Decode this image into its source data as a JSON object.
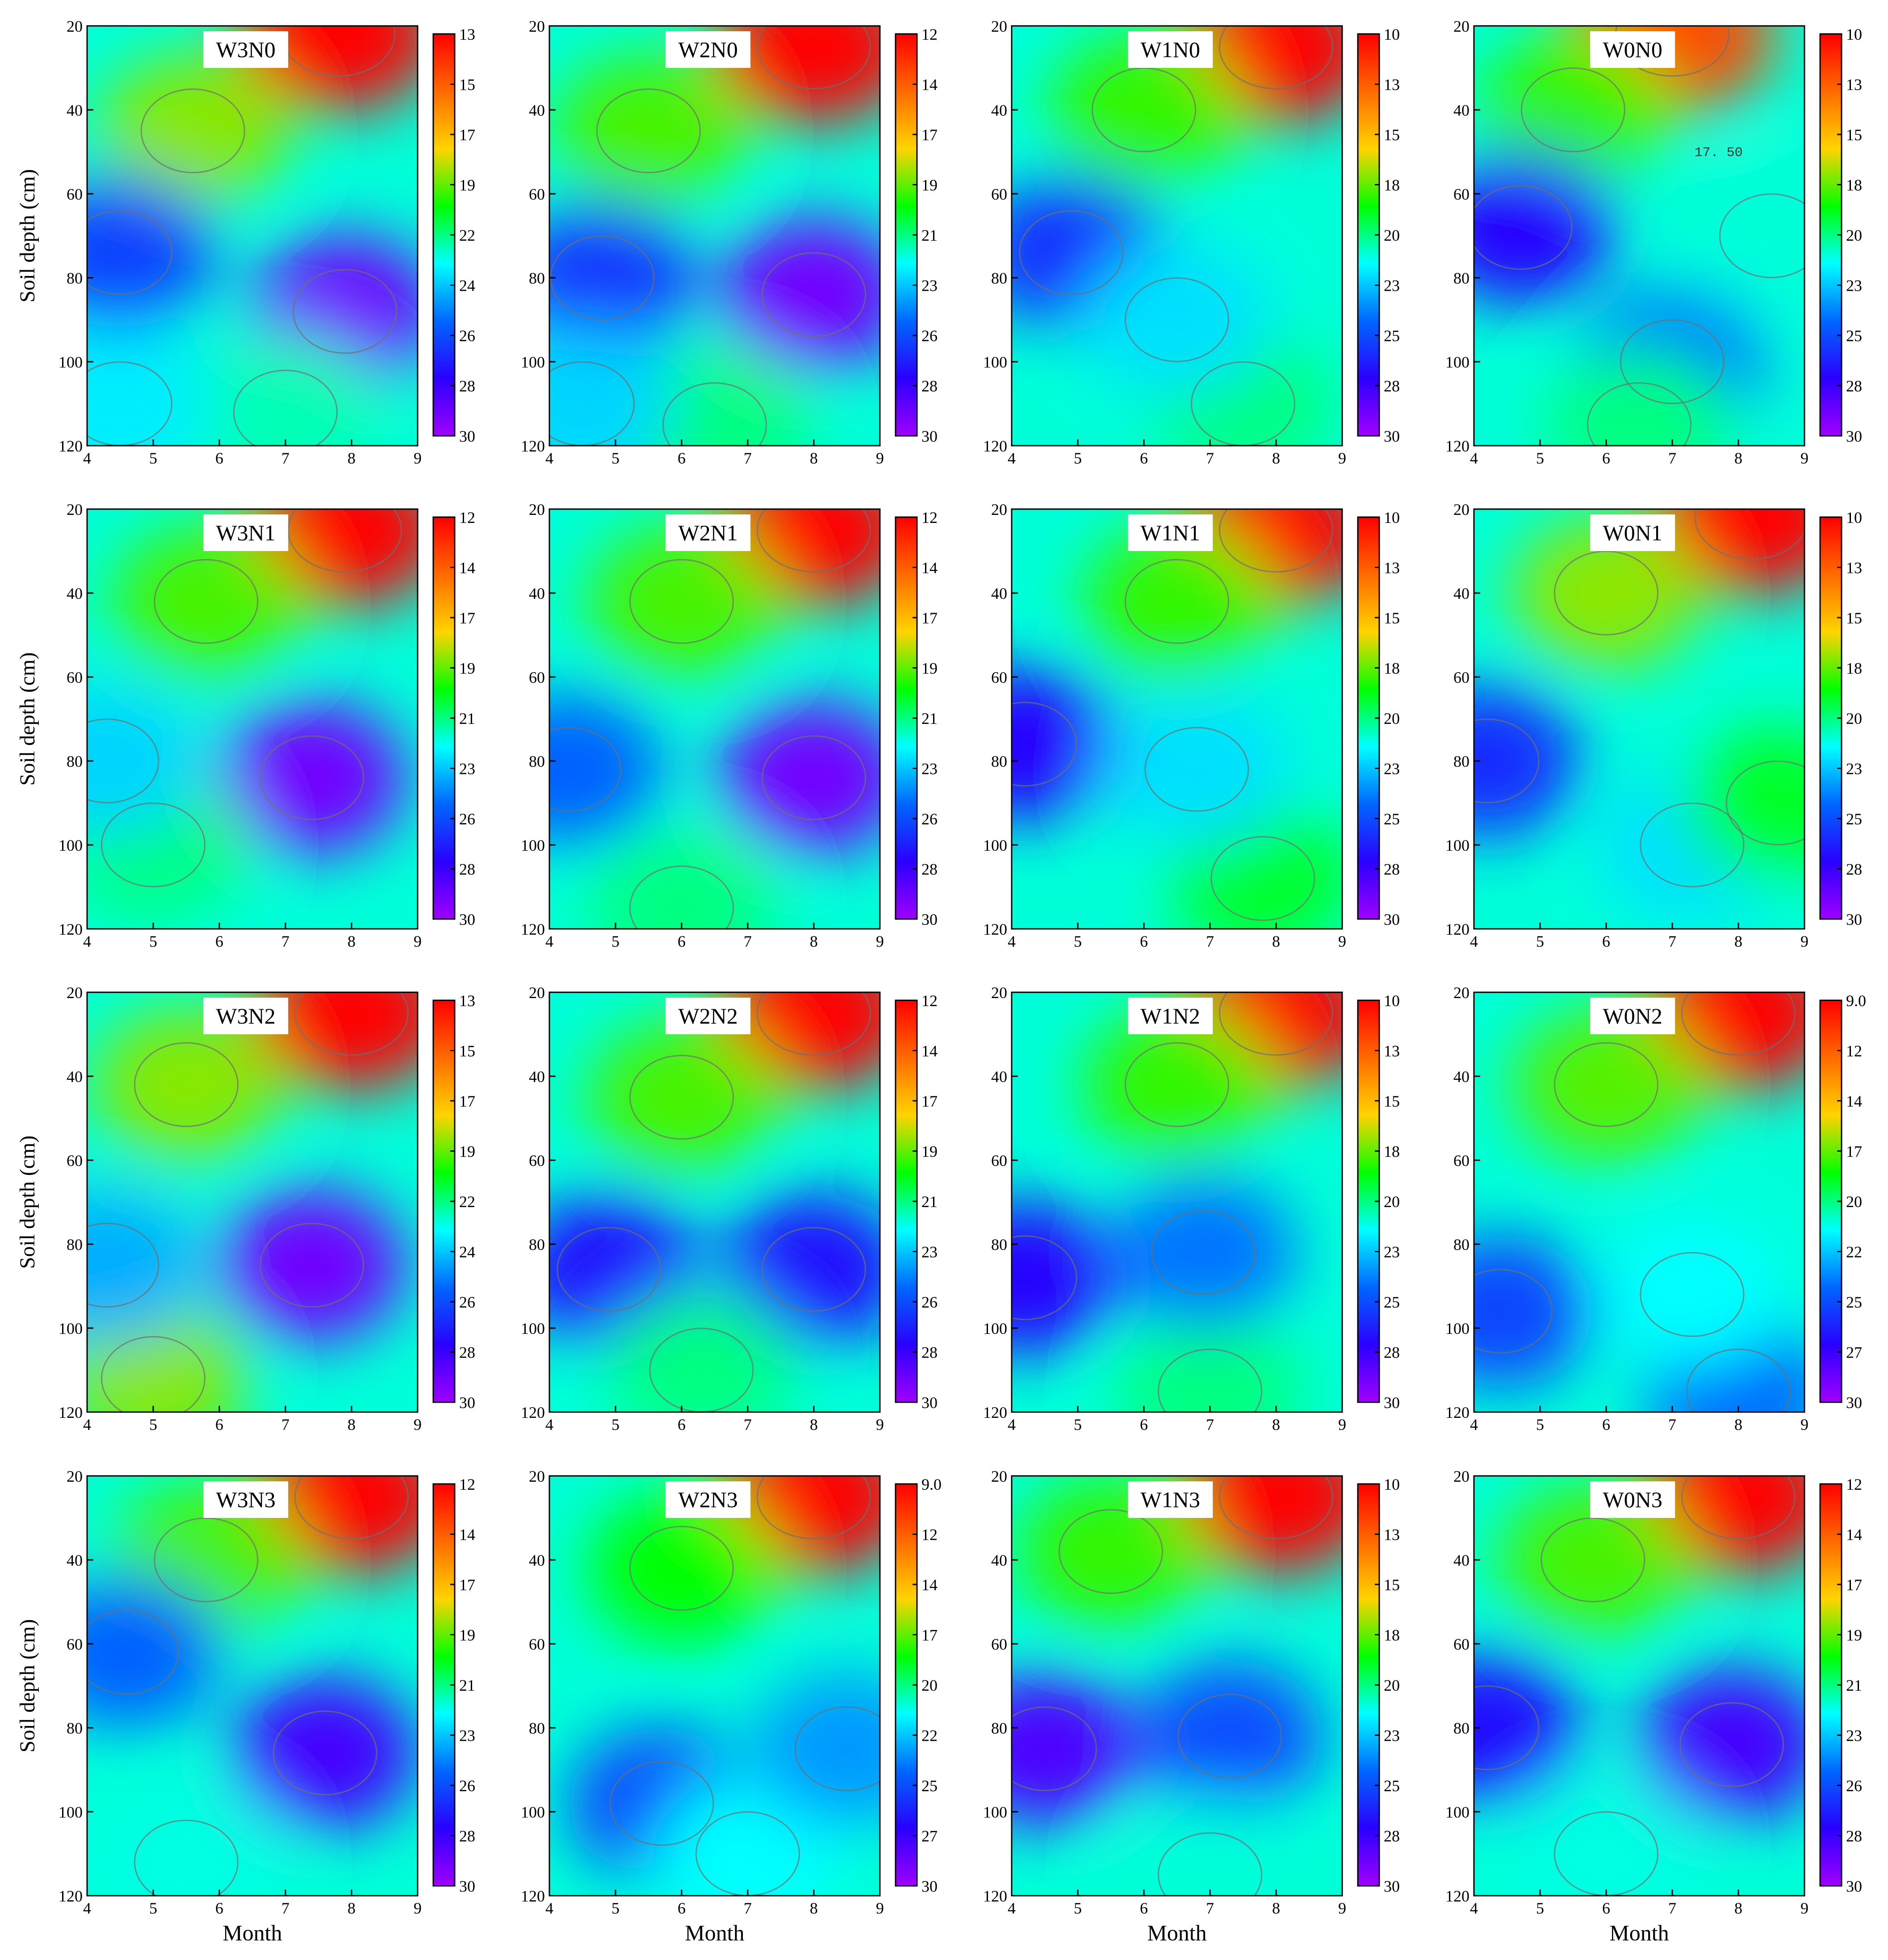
{
  "figure": {
    "ylabel": "Soil depth (cm)",
    "xlabel": "Month"
  },
  "colors": {
    "ramp": [
      "#ff0000",
      "#ff6a00",
      "#ffd400",
      "#00ff00",
      "#00ffff",
      "#0066ff",
      "#2a00ff",
      "#a000ff"
    ],
    "contour": "#6f6f6f",
    "axis": "#000000"
  },
  "chart_data": [
    {
      "type": "heatmap",
      "title": "W3N0",
      "x_ticks": [
        "4",
        "5",
        "6",
        "7",
        "8",
        "9"
      ],
      "y_ticks": [
        "20",
        "40",
        "60",
        "80",
        "100",
        "120"
      ],
      "xlim": [
        4,
        9
      ],
      "ylim": [
        20,
        120
      ],
      "colorbar_ticks": [
        "13",
        "15",
        "17",
        "19",
        "22",
        "24",
        "26",
        "28",
        "30"
      ],
      "colorbar_range": [
        13,
        30
      ],
      "blobs": [
        {
          "x": 7.8,
          "y": 22,
          "value": 13
        },
        {
          "x": 5.6,
          "y": 45,
          "value": 19
        },
        {
          "x": 4.5,
          "y": 74,
          "value": 26
        },
        {
          "x": 7.9,
          "y": 88,
          "value": 29
        },
        {
          "x": 7.0,
          "y": 112,
          "value": 22
        },
        {
          "x": 4.5,
          "y": 110,
          "value": 23
        }
      ]
    },
    {
      "type": "heatmap",
      "title": "W2N0",
      "x_ticks": [
        "4",
        "5",
        "6",
        "7",
        "8",
        "9"
      ],
      "y_ticks": [
        "20",
        "40",
        "60",
        "80",
        "100",
        "120"
      ],
      "xlim": [
        4,
        9
      ],
      "ylim": [
        20,
        120
      ],
      "colorbar_ticks": [
        "12",
        "14",
        "17",
        "19",
        "21",
        "23",
        "26",
        "28",
        "30"
      ],
      "colorbar_range": [
        12,
        30
      ],
      "blobs": [
        {
          "x": 8.0,
          "y": 25,
          "value": 12
        },
        {
          "x": 5.5,
          "y": 45,
          "value": 19
        },
        {
          "x": 4.8,
          "y": 80,
          "value": 26
        },
        {
          "x": 8.0,
          "y": 84,
          "value": 29
        },
        {
          "x": 6.5,
          "y": 115,
          "value": 21
        },
        {
          "x": 4.5,
          "y": 110,
          "value": 23
        }
      ]
    },
    {
      "type": "heatmap",
      "title": "W1N0",
      "x_ticks": [
        "4",
        "5",
        "6",
        "7",
        "8",
        "9"
      ],
      "y_ticks": [
        "20",
        "40",
        "60",
        "80",
        "100",
        "120"
      ],
      "xlim": [
        4,
        9
      ],
      "ylim": [
        20,
        120
      ],
      "colorbar_ticks": [
        "10",
        "13",
        "15",
        "18",
        "20",
        "23",
        "25",
        "28",
        "30"
      ],
      "colorbar_range": [
        10,
        30
      ],
      "blobs": [
        {
          "x": 8.0,
          "y": 25,
          "value": 10
        },
        {
          "x": 6.0,
          "y": 40,
          "value": 18
        },
        {
          "x": 4.9,
          "y": 74,
          "value": 26
        },
        {
          "x": 7.5,
          "y": 110,
          "value": 20
        },
        {
          "x": 6.5,
          "y": 90,
          "value": 22
        }
      ]
    },
    {
      "type": "heatmap",
      "title": "W0N0",
      "x_ticks": [
        "4",
        "5",
        "6",
        "7",
        "8",
        "9"
      ],
      "y_ticks": [
        "20",
        "40",
        "60",
        "80",
        "100",
        "120"
      ],
      "xlim": [
        4,
        9
      ],
      "ylim": [
        20,
        120
      ],
      "colorbar_ticks": [
        "10",
        "13",
        "15",
        "18",
        "20",
        "23",
        "25",
        "28",
        "30"
      ],
      "colorbar_range": [
        10,
        30
      ],
      "annotation": "17. 50",
      "blobs": [
        {
          "x": 7.0,
          "y": 22,
          "value": 12
        },
        {
          "x": 5.5,
          "y": 40,
          "value": 18
        },
        {
          "x": 4.7,
          "y": 68,
          "value": 27
        },
        {
          "x": 7.0,
          "y": 100,
          "value": 24
        },
        {
          "x": 6.5,
          "y": 115,
          "value": 20
        },
        {
          "x": 8.5,
          "y": 70,
          "value": 21
        }
      ]
    },
    {
      "type": "heatmap",
      "title": "W3N1",
      "x_ticks": [
        "4",
        "5",
        "6",
        "7",
        "8",
        "9"
      ],
      "y_ticks": [
        "20",
        "40",
        "60",
        "80",
        "100",
        "120"
      ],
      "xlim": [
        4,
        9
      ],
      "ylim": [
        20,
        120
      ],
      "colorbar_ticks": [
        "12",
        "14",
        "17",
        "19",
        "21",
        "23",
        "26",
        "28",
        "30"
      ],
      "colorbar_range": [
        12,
        30
      ],
      "blobs": [
        {
          "x": 7.9,
          "y": 25,
          "value": 12
        },
        {
          "x": 5.8,
          "y": 42,
          "value": 19
        },
        {
          "x": 7.4,
          "y": 84,
          "value": 29
        },
        {
          "x": 5.0,
          "y": 100,
          "value": 21
        },
        {
          "x": 4.3,
          "y": 80,
          "value": 23
        }
      ]
    },
    {
      "type": "heatmap",
      "title": "W2N1",
      "x_ticks": [
        "4",
        "5",
        "6",
        "7",
        "8",
        "9"
      ],
      "y_ticks": [
        "20",
        "40",
        "60",
        "80",
        "100",
        "120"
      ],
      "xlim": [
        4,
        9
      ],
      "ylim": [
        20,
        120
      ],
      "colorbar_ticks": [
        "12",
        "14",
        "17",
        "19",
        "21",
        "23",
        "26",
        "28",
        "30"
      ],
      "colorbar_range": [
        12,
        30
      ],
      "blobs": [
        {
          "x": 8.0,
          "y": 25,
          "value": 12
        },
        {
          "x": 6.0,
          "y": 42,
          "value": 19
        },
        {
          "x": 8.0,
          "y": 84,
          "value": 29
        },
        {
          "x": 4.3,
          "y": 82,
          "value": 25
        },
        {
          "x": 6.0,
          "y": 115,
          "value": 21
        }
      ]
    },
    {
      "type": "heatmap",
      "title": "W1N1",
      "x_ticks": [
        "4",
        "5",
        "6",
        "7",
        "8",
        "9"
      ],
      "y_ticks": [
        "20",
        "40",
        "60",
        "80",
        "100",
        "120"
      ],
      "xlim": [
        4,
        9
      ],
      "ylim": [
        20,
        120
      ],
      "colorbar_ticks": [
        "10",
        "13",
        "15",
        "18",
        "20",
        "23",
        "25",
        "28",
        "30"
      ],
      "colorbar_range": [
        10,
        30
      ],
      "blobs": [
        {
          "x": 8.0,
          "y": 25,
          "value": 10
        },
        {
          "x": 6.5,
          "y": 42,
          "value": 18
        },
        {
          "x": 4.2,
          "y": 76,
          "value": 27
        },
        {
          "x": 7.8,
          "y": 108,
          "value": 19
        },
        {
          "x": 6.8,
          "y": 82,
          "value": 22
        }
      ]
    },
    {
      "type": "heatmap",
      "title": "W0N1",
      "x_ticks": [
        "4",
        "5",
        "6",
        "7",
        "8",
        "9"
      ],
      "y_ticks": [
        "20",
        "40",
        "60",
        "80",
        "100",
        "120"
      ],
      "xlim": [
        4,
        9
      ],
      "ylim": [
        20,
        120
      ],
      "colorbar_ticks": [
        "10",
        "13",
        "15",
        "18",
        "20",
        "23",
        "25",
        "28",
        "30"
      ],
      "colorbar_range": [
        10,
        30
      ],
      "blobs": [
        {
          "x": 8.2,
          "y": 22,
          "value": 10
        },
        {
          "x": 6.0,
          "y": 40,
          "value": 17
        },
        {
          "x": 4.2,
          "y": 80,
          "value": 26
        },
        {
          "x": 7.3,
          "y": 100,
          "value": 22
        },
        {
          "x": 8.6,
          "y": 90,
          "value": 19
        }
      ]
    },
    {
      "type": "heatmap",
      "title": "W3N2",
      "x_ticks": [
        "4",
        "5",
        "6",
        "7",
        "8",
        "9"
      ],
      "y_ticks": [
        "20",
        "40",
        "60",
        "80",
        "100",
        "120"
      ],
      "xlim": [
        4,
        9
      ],
      "ylim": [
        20,
        120
      ],
      "colorbar_ticks": [
        "13",
        "15",
        "17",
        "19",
        "22",
        "24",
        "26",
        "28",
        "30"
      ],
      "colorbar_range": [
        13,
        30
      ],
      "blobs": [
        {
          "x": 8.0,
          "y": 25,
          "value": 13
        },
        {
          "x": 5.5,
          "y": 42,
          "value": 19
        },
        {
          "x": 7.4,
          "y": 85,
          "value": 29
        },
        {
          "x": 5.0,
          "y": 112,
          "value": 19
        },
        {
          "x": 4.3,
          "y": 85,
          "value": 24
        }
      ]
    },
    {
      "type": "heatmap",
      "title": "W2N2",
      "x_ticks": [
        "4",
        "5",
        "6",
        "7",
        "8",
        "9"
      ],
      "y_ticks": [
        "20",
        "40",
        "60",
        "80",
        "100",
        "120"
      ],
      "xlim": [
        4,
        9
      ],
      "ylim": [
        20,
        120
      ],
      "colorbar_ticks": [
        "12",
        "14",
        "17",
        "19",
        "21",
        "23",
        "26",
        "28",
        "30"
      ],
      "colorbar_range": [
        12,
        30
      ],
      "blobs": [
        {
          "x": 8.0,
          "y": 25,
          "value": 12
        },
        {
          "x": 6.0,
          "y": 45,
          "value": 19
        },
        {
          "x": 4.9,
          "y": 86,
          "value": 27
        },
        {
          "x": 8.0,
          "y": 86,
          "value": 27
        },
        {
          "x": 6.3,
          "y": 110,
          "value": 21
        }
      ]
    },
    {
      "type": "heatmap",
      "title": "W1N2",
      "x_ticks": [
        "4",
        "5",
        "6",
        "7",
        "8",
        "9"
      ],
      "y_ticks": [
        "20",
        "40",
        "60",
        "80",
        "100",
        "120"
      ],
      "xlim": [
        4,
        9
      ],
      "ylim": [
        20,
        120
      ],
      "colorbar_ticks": [
        "10",
        "13",
        "15",
        "18",
        "20",
        "23",
        "25",
        "28",
        "30"
      ],
      "colorbar_range": [
        10,
        30
      ],
      "blobs": [
        {
          "x": 8.0,
          "y": 25,
          "value": 10
        },
        {
          "x": 6.5,
          "y": 42,
          "value": 18
        },
        {
          "x": 4.2,
          "y": 88,
          "value": 27
        },
        {
          "x": 7.0,
          "y": 115,
          "value": 20
        },
        {
          "x": 6.9,
          "y": 82,
          "value": 24
        }
      ]
    },
    {
      "type": "heatmap",
      "title": "W0N2",
      "x_ticks": [
        "4",
        "5",
        "6",
        "7",
        "8",
        "9"
      ],
      "y_ticks": [
        "20",
        "40",
        "60",
        "80",
        "100",
        "120"
      ],
      "xlim": [
        4,
        9
      ],
      "ylim": [
        20,
        120
      ],
      "colorbar_ticks": [
        "9.0",
        "12",
        "14",
        "17",
        "20",
        "22",
        "25",
        "27",
        "30"
      ],
      "colorbar_range": [
        9,
        30
      ],
      "blobs": [
        {
          "x": 8.0,
          "y": 25,
          "value": 9
        },
        {
          "x": 6.0,
          "y": 42,
          "value": 17
        },
        {
          "x": 4.4,
          "y": 96,
          "value": 25
        },
        {
          "x": 8.0,
          "y": 115,
          "value": 24
        },
        {
          "x": 7.3,
          "y": 92,
          "value": 21
        }
      ]
    },
    {
      "type": "heatmap",
      "title": "W3N3",
      "x_ticks": [
        "4",
        "5",
        "6",
        "7",
        "8",
        "9"
      ],
      "y_ticks": [
        "20",
        "40",
        "60",
        "80",
        "100",
        "120"
      ],
      "xlim": [
        4,
        9
      ],
      "ylim": [
        20,
        120
      ],
      "colorbar_ticks": [
        "12",
        "14",
        "17",
        "19",
        "21",
        "23",
        "26",
        "28",
        "30"
      ],
      "colorbar_range": [
        12,
        30
      ],
      "blobs": [
        {
          "x": 8.0,
          "y": 25,
          "value": 12
        },
        {
          "x": 5.8,
          "y": 40,
          "value": 19
        },
        {
          "x": 4.6,
          "y": 62,
          "value": 25
        },
        {
          "x": 7.6,
          "y": 86,
          "value": 28
        },
        {
          "x": 5.5,
          "y": 112,
          "value": 22
        }
      ]
    },
    {
      "type": "heatmap",
      "title": "W2N3",
      "x_ticks": [
        "4",
        "5",
        "6",
        "7",
        "8",
        "9"
      ],
      "y_ticks": [
        "20",
        "40",
        "60",
        "80",
        "100",
        "120"
      ],
      "xlim": [
        4,
        9
      ],
      "ylim": [
        20,
        120
      ],
      "colorbar_ticks": [
        "9.0",
        "12",
        "14",
        "17",
        "20",
        "22",
        "25",
        "27",
        "30"
      ],
      "colorbar_range": [
        9,
        30
      ],
      "blobs": [
        {
          "x": 8.0,
          "y": 25,
          "value": 9
        },
        {
          "x": 6.0,
          "y": 42,
          "value": 18
        },
        {
          "x": 5.7,
          "y": 98,
          "value": 25
        },
        {
          "x": 7.0,
          "y": 110,
          "value": 21
        },
        {
          "x": 8.5,
          "y": 85,
          "value": 23
        }
      ]
    },
    {
      "type": "heatmap",
      "title": "W1N3",
      "x_ticks": [
        "4",
        "5",
        "6",
        "7",
        "8",
        "9"
      ],
      "y_ticks": [
        "20",
        "40",
        "60",
        "80",
        "100",
        "120"
      ],
      "xlim": [
        4,
        9
      ],
      "ylim": [
        20,
        120
      ],
      "colorbar_ticks": [
        "10",
        "13",
        "15",
        "18",
        "20",
        "23",
        "25",
        "28",
        "30"
      ],
      "colorbar_range": [
        10,
        30
      ],
      "blobs": [
        {
          "x": 8.0,
          "y": 25,
          "value": 10
        },
        {
          "x": 5.5,
          "y": 38,
          "value": 18
        },
        {
          "x": 4.5,
          "y": 85,
          "value": 28
        },
        {
          "x": 7.3,
          "y": 82,
          "value": 25
        },
        {
          "x": 7.0,
          "y": 115,
          "value": 21
        }
      ]
    },
    {
      "type": "heatmap",
      "title": "W0N3",
      "x_ticks": [
        "4",
        "5",
        "6",
        "7",
        "8",
        "9"
      ],
      "y_ticks": [
        "20",
        "40",
        "60",
        "80",
        "100",
        "120"
      ],
      "xlim": [
        4,
        9
      ],
      "ylim": [
        20,
        120
      ],
      "colorbar_ticks": [
        "12",
        "14",
        "17",
        "19",
        "21",
        "23",
        "26",
        "28",
        "30"
      ],
      "colorbar_range": [
        12,
        30
      ],
      "blobs": [
        {
          "x": 8.0,
          "y": 25,
          "value": 12
        },
        {
          "x": 5.8,
          "y": 40,
          "value": 19
        },
        {
          "x": 4.2,
          "y": 80,
          "value": 27
        },
        {
          "x": 7.9,
          "y": 84,
          "value": 28
        },
        {
          "x": 6.0,
          "y": 110,
          "value": 22
        }
      ]
    }
  ]
}
